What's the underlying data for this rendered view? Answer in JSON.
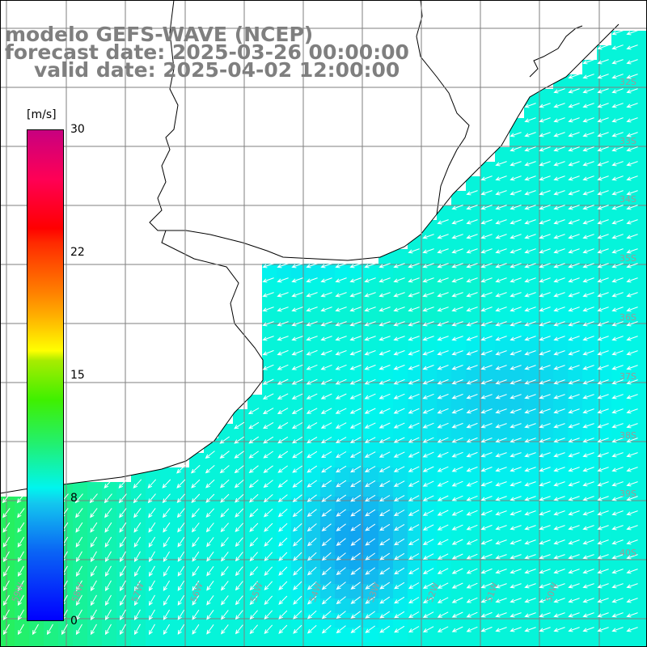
{
  "title": {
    "line1": "modelo GEFS-WAVE (NCEP)",
    "line2": "forecast date: 2025-03-26 00:00:00",
    "line3": "valid date: 2025-04-02 12:00:00"
  },
  "colorbar": {
    "unit": "[m/s]",
    "min": 0,
    "max": 30,
    "ticks": [
      "30",
      "22",
      "15",
      "8",
      "0"
    ],
    "colors": [
      "#0000ff",
      "#13c8ee",
      "#00f5ee",
      "#3ff000",
      "#ffff00",
      "#ff7f00",
      "#ff0000",
      "#c80080"
    ]
  },
  "map": {
    "lat_labels": [
      "32S",
      "33S",
      "34S",
      "35S",
      "36S",
      "37S",
      "38S",
      "39S",
      "40S"
    ],
    "lon_labels": [
      "59W",
      "58W",
      "57W",
      "56W",
      "55W",
      "54W",
      "53W",
      "52W",
      "51W",
      "50W"
    ],
    "grid_color": "#7f7f7f",
    "land_color": "#ffffff",
    "vector_color": "#ffffff",
    "dominant_wind_direction": "from east-northeast, turning northerly in the south"
  }
}
